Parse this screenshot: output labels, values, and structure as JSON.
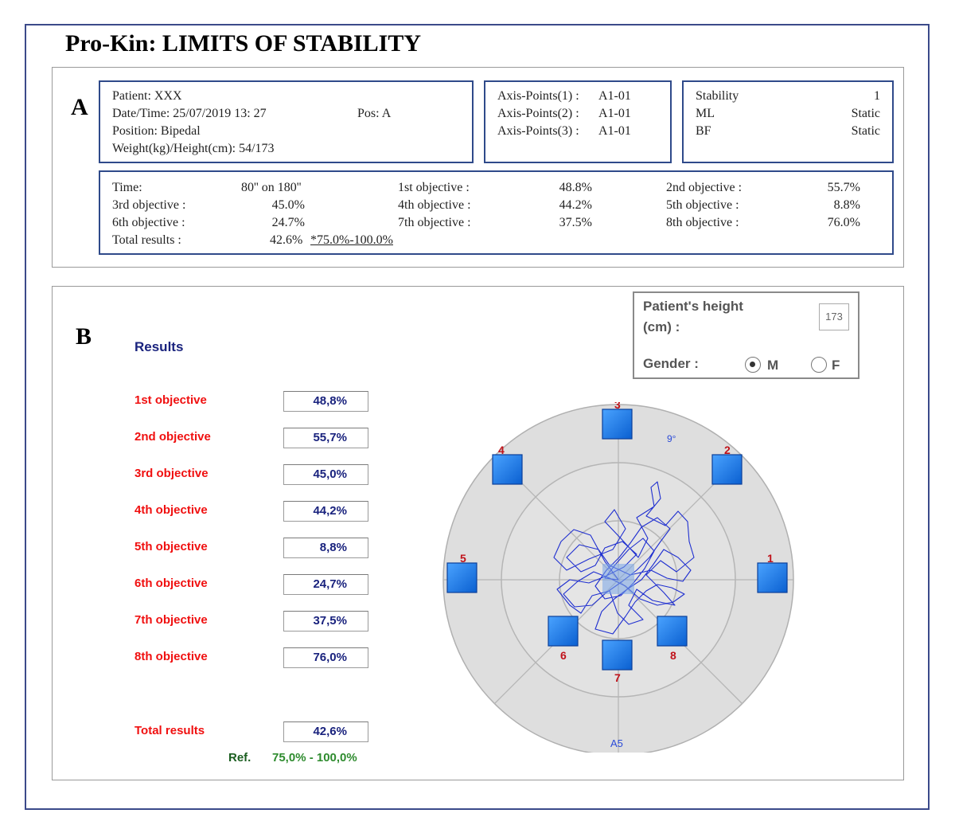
{
  "title": "Pro-Kin:  LIMITS OF STABILITY",
  "panel_a": {
    "letter": "A",
    "patient_box": {
      "patient": "Patient:  XXX",
      "datetime": "Date/Time:  25/07/2019   13:  27",
      "pos": "Pos:  A",
      "position": "Position:  Bipedal",
      "weight_height": "Weight(kg)/Height(cm):  54/173"
    },
    "axis_box": {
      "rows": [
        {
          "label": "Axis-Points(1) :",
          "value": "A1-01"
        },
        {
          "label": "Axis-Points(2) :",
          "value": "A1-01"
        },
        {
          "label": "Axis-Points(3) :",
          "value": "A1-01"
        }
      ]
    },
    "stability_box": {
      "rows": [
        {
          "label": "Stability",
          "value": "1"
        },
        {
          "label": "ML",
          "value": "Static"
        },
        {
          "label": "BF",
          "value": "Static"
        }
      ]
    },
    "summary_box": {
      "time_label": "Time:",
      "time_value": "80'' on 180''",
      "o1_label": "1st objective :",
      "o1_value": "48.8%",
      "o2_label": "2nd objective :",
      "o2_value": "55.7%",
      "o3_label": "3rd objective :",
      "o3_value": "45.0%",
      "o4_label": "4th objective :",
      "o4_value": "44.2%",
      "o5_label": "5th objective :",
      "o5_value": "8.8%",
      "o6_label": "6th objective :",
      "o6_value": "24.7%",
      "o7_label": "7th objective :",
      "o7_value": "37.5%",
      "o8_label": "8th objective :",
      "o8_value": "76.0%",
      "total_label": "Total results :",
      "total_value": "42.6%",
      "total_ref": "*75.0%-100.0%"
    }
  },
  "panel_b": {
    "letter": "B",
    "results_title": "Results",
    "objectives": [
      {
        "label": "1st objective",
        "value": "48,8%"
      },
      {
        "label": "2nd objective",
        "value": "55,7%"
      },
      {
        "label": "3rd objective",
        "value": "45,0%"
      },
      {
        "label": "4th objective",
        "value": "44,2%"
      },
      {
        "label": "5th objective",
        "value": "8,8%"
      },
      {
        "label": "6th objective",
        "value": "24,7%"
      },
      {
        "label": "7th objective",
        "value": "37,5%"
      },
      {
        "label": "8th objective",
        "value": "76,0%"
      }
    ],
    "total": {
      "label": "Total results",
      "value": "42,6%"
    },
    "ref_label": "Ref.",
    "ref_value": "75,0% - 100,0%",
    "height_label_1": "Patient's height",
    "height_label_2": "(cm) :",
    "height_value": "173",
    "gender_label": "Gender :",
    "gender_m": "M",
    "gender_f": "F",
    "gender_selected": "M",
    "target": {
      "angle_label": "9°",
      "bottom_label": "A5",
      "points": [
        "1",
        "2",
        "3",
        "4",
        "5",
        "6",
        "7",
        "8"
      ]
    }
  },
  "colors": {
    "box_border": "#2f4a8a",
    "objective_label": "#f01010",
    "value_text": "#1a237e",
    "target_fill": "#dcdcdc",
    "point_fill": "#1e7ee8",
    "trace": "#1f2fd0"
  }
}
